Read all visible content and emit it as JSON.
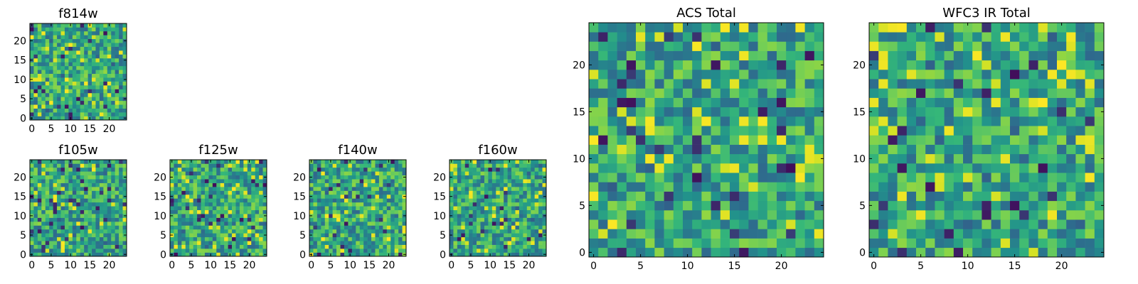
{
  "figure": {
    "description_free": true
  },
  "colormap": [
    "#440154",
    "#30678d",
    "#21918c",
    "#35b779",
    "#7ad151",
    "#bddf26",
    "#fde725"
  ],
  "chart_data": [
    {
      "type": "heatmap",
      "title": "f814w",
      "grid_size": 25,
      "seed": 11,
      "xticks": [
        0,
        5,
        10,
        15,
        20
      ],
      "yticks": [
        0,
        5,
        10,
        15,
        20
      ],
      "value_range": [
        0,
        1
      ],
      "upsample": 1
    },
    {
      "type": "heatmap",
      "title": "f105w",
      "grid_size": 25,
      "seed": 23,
      "xticks": [
        0,
        5,
        10,
        15,
        20
      ],
      "yticks": [
        0,
        5,
        10,
        15,
        20
      ],
      "value_range": [
        0,
        1
      ],
      "upsample": 1
    },
    {
      "type": "heatmap",
      "title": "f125w",
      "grid_size": 25,
      "seed": 37,
      "xticks": [
        0,
        5,
        10,
        15,
        20
      ],
      "yticks": [
        0,
        5,
        10,
        15,
        20
      ],
      "value_range": [
        0,
        1
      ],
      "upsample": 1
    },
    {
      "type": "heatmap",
      "title": "f140w",
      "grid_size": 25,
      "seed": 41,
      "xticks": [
        0,
        5,
        10,
        15,
        20
      ],
      "yticks": [
        0,
        5,
        10,
        15,
        20
      ],
      "value_range": [
        0,
        1
      ],
      "upsample": 1
    },
    {
      "type": "heatmap",
      "title": "f160w",
      "grid_size": 25,
      "seed": 53,
      "xticks": [
        0,
        5,
        10,
        15,
        20
      ],
      "yticks": [
        0,
        5,
        10,
        15,
        20
      ],
      "value_range": [
        0,
        1
      ],
      "upsample": 1
    },
    {
      "type": "heatmap",
      "title": "ACS Total",
      "grid_size": 25,
      "seed": 67,
      "xticks": [
        0,
        5,
        10,
        15,
        20
      ],
      "yticks": [
        0,
        5,
        10,
        15,
        20
      ],
      "value_range": [
        0,
        1
      ],
      "upsample": 1
    },
    {
      "type": "heatmap",
      "title": "WFC3 IR Total",
      "grid_size": 25,
      "seed": 79,
      "xticks": [
        0,
        5,
        10,
        15,
        20
      ],
      "yticks": [
        0,
        5,
        10,
        15,
        20
      ],
      "value_range": [
        0,
        1
      ],
      "upsample": 1
    }
  ]
}
